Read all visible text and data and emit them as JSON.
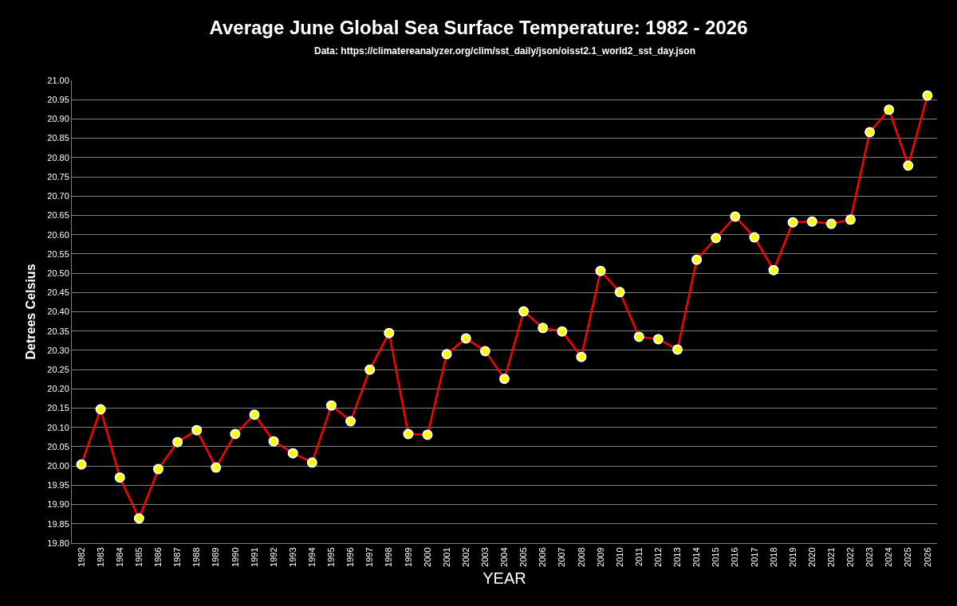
{
  "chart_data": {
    "type": "line",
    "title": "Average June Global Sea Surface Temperature: 1982 - 2026",
    "subtitle": "Data: https://climatereanalyzer.org/clim/sst_daily/json/oisst2.1_world2_sst_day.json",
    "xlabel": "YEAR",
    "ylabel": "Detrees Celsius",
    "categories": [
      "1982",
      "1983",
      "1984",
      "1985",
      "1986",
      "1987",
      "1988",
      "1989",
      "1990",
      "1991",
      "1992",
      "1993",
      "1994",
      "1995",
      "1996",
      "1997",
      "1998",
      "1999",
      "2000",
      "2001",
      "2002",
      "2003",
      "2004",
      "2005",
      "2006",
      "2007",
      "2008",
      "2009",
      "2010",
      "2011",
      "2012",
      "2013",
      "2014",
      "2015",
      "2016",
      "2017",
      "2018",
      "2019",
      "2020",
      "2021",
      "2022",
      "2023",
      "2024",
      "2025",
      "2026"
    ],
    "series": [
      {
        "color": "#ff0000",
        "values": [
          20.004,
          20.147,
          19.97,
          19.864,
          19.992,
          20.062,
          20.093,
          19.996,
          20.083,
          20.133,
          20.064,
          20.033,
          20.009,
          20.157,
          20.116,
          20.25,
          20.345,
          20.083,
          20.081,
          20.29,
          20.331,
          20.298,
          20.226,
          20.401,
          20.358,
          20.349,
          20.283,
          20.506,
          20.451,
          20.335,
          20.329,
          20.302,
          20.535,
          20.591,
          20.647,
          20.593,
          20.508,
          20.632,
          20.634,
          20.628,
          20.639,
          20.866,
          20.924,
          20.779,
          20.961
        ]
      }
    ],
    "ylim": [
      19.8,
      21.0
    ],
    "yticks": [
      {
        "value": 19.8,
        "label": "19.80"
      },
      {
        "value": 19.85,
        "label": "19.85"
      },
      {
        "value": 19.9,
        "label": "19.90"
      },
      {
        "value": 19.95,
        "label": "19.95"
      },
      {
        "value": 20.0,
        "label": "20.00"
      },
      {
        "value": 20.05,
        "label": "20.05"
      },
      {
        "value": 20.1,
        "label": "20.10"
      },
      {
        "value": 20.15,
        "label": "20.15"
      },
      {
        "value": 20.2,
        "label": "20.20"
      },
      {
        "value": 20.25,
        "label": "20.25"
      },
      {
        "value": 20.3,
        "label": "20.30"
      },
      {
        "value": 20.35,
        "label": "20.35"
      },
      {
        "value": 20.4,
        "label": "20.40"
      },
      {
        "value": 20.45,
        "label": "20.45"
      },
      {
        "value": 20.5,
        "label": "20.50"
      },
      {
        "value": 20.55,
        "label": "20.55"
      },
      {
        "value": 20.6,
        "label": "20.60"
      },
      {
        "value": 20.65,
        "label": "20.65"
      },
      {
        "value": 20.7,
        "label": "20.70"
      },
      {
        "value": 20.75,
        "label": "20.75"
      },
      {
        "value": 20.8,
        "label": "20.80"
      },
      {
        "value": 20.85,
        "label": "20.85"
      },
      {
        "value": 20.9,
        "label": "20.90"
      },
      {
        "value": 20.95,
        "label": "20.95"
      },
      {
        "value": 21.0,
        "label": "21.00"
      }
    ],
    "grid": "y",
    "marker": "circle",
    "line_style": "solid"
  }
}
